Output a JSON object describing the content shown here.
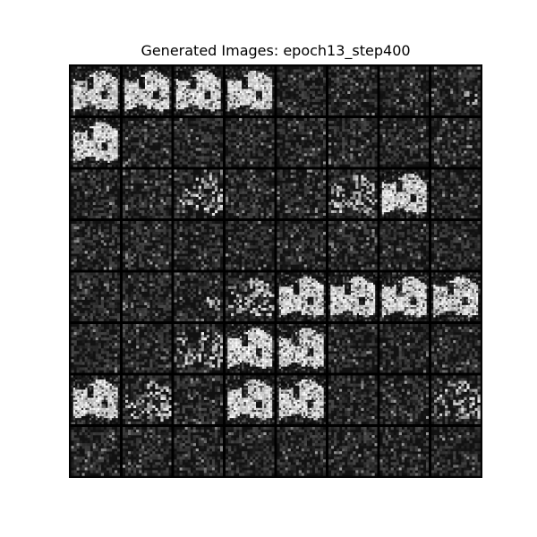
{
  "figure": {
    "title": "Generated Images: epoch13_step400"
  },
  "image_grid": {
    "rows": 8,
    "cols": 8,
    "background_color": "#000000",
    "noise_color": "#2f2f2f",
    "bright_color": "#f2f2f2",
    "cells": [
      [
        "bright",
        "bright",
        "bright",
        "bright",
        "noise",
        "noise",
        "noise",
        "noise-spot"
      ],
      [
        "bright",
        "noise",
        "noise",
        "noise",
        "noise",
        "noise",
        "noise",
        "noise"
      ],
      [
        "noise",
        "noise",
        "partial-right",
        "noise",
        "noise",
        "partial",
        "bright",
        "noise"
      ],
      [
        "noise",
        "noise",
        "noise",
        "noise",
        "noise",
        "noise",
        "noise",
        "noise"
      ],
      [
        "noise",
        "noise",
        "noise-spot",
        "partial",
        "bright",
        "bright",
        "bright",
        "bright"
      ],
      [
        "noise",
        "noise",
        "partial-right",
        "bright",
        "bright",
        "noise",
        "noise",
        "noise"
      ],
      [
        "bright",
        "partial-right",
        "noise",
        "bright",
        "bright",
        "noise",
        "noise",
        "partial-right"
      ],
      [
        "noise",
        "noise",
        "noise",
        "noise",
        "noise",
        "noise",
        "noise",
        "noise"
      ]
    ]
  }
}
